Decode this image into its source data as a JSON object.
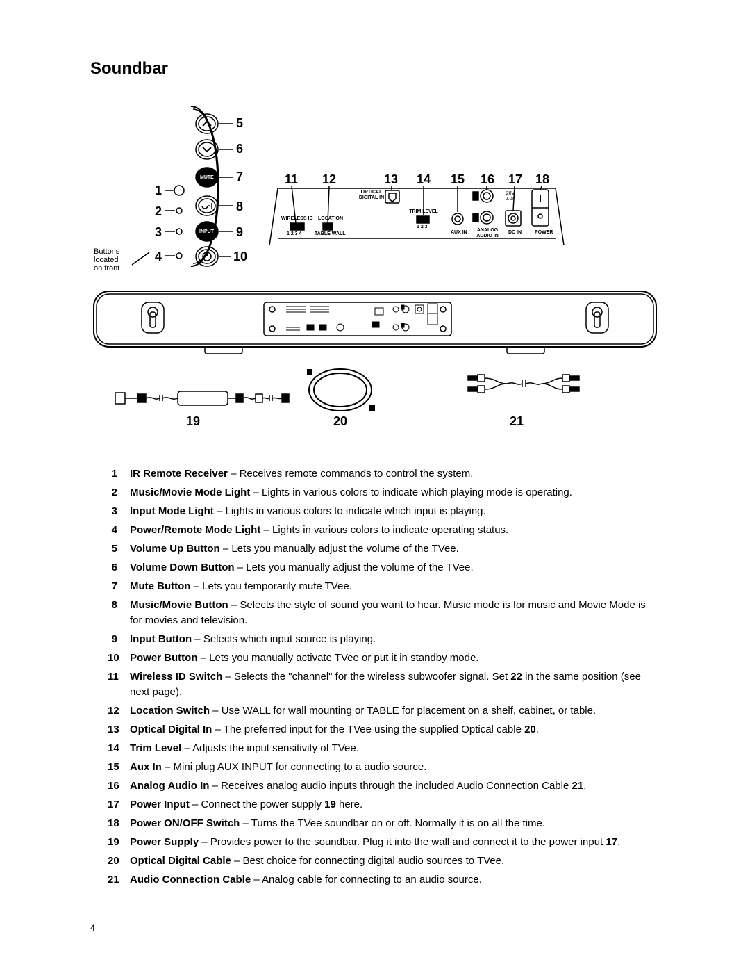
{
  "title": "Soundbar",
  "page_number": "4",
  "diagram": {
    "front_note": "Buttons\nlocated\non front",
    "left_nums": {
      "l1": "1",
      "l2": "2",
      "l3": "3",
      "l4": "4"
    },
    "right_nums": {
      "r5": "5",
      "r6": "6",
      "r7": "7",
      "r8": "8",
      "r9": "9",
      "r10": "10"
    },
    "top_nums": {
      "t11": "11",
      "t12": "12",
      "t13": "13",
      "t14": "14",
      "t15": "15",
      "t16": "16",
      "t17": "17",
      "t18": "18"
    },
    "bottom_nums": {
      "b19": "19",
      "b20": "20",
      "b21": "21"
    },
    "btn_mute": "MUTE",
    "btn_input": "INPUT",
    "lbl_optical": "OPTICAL\nDIGITAL IN",
    "lbl_wireless": "WIRELESS ID",
    "lbl_location": "LOCATION",
    "lbl_1234": "1 2 3 4",
    "lbl_tablewall": "TABLE  WALL",
    "lbl_trim": "TRIM LEVEL",
    "lbl_123": "1 2 3",
    "lbl_auxin": "AUX IN",
    "lbl_analog": "ANALOG\nAUDIO IN",
    "lbl_dcin": "DC IN",
    "lbl_power": "POWER",
    "lbl_20v": "20V\n2.0A"
  },
  "legend": [
    {
      "n": "1",
      "t": "IR Remote Receiver",
      "d": " – Receives remote commands to control the system."
    },
    {
      "n": "2",
      "t": "Music/Movie Mode Light",
      "d": " – Lights in various colors to indicate which playing mode is operating."
    },
    {
      "n": "3",
      "t": "Input Mode Light",
      "d": " – Lights in various colors to indicate which input is playing."
    },
    {
      "n": "4",
      "t": "Power/Remote Mode Light",
      "d": " – Lights in various colors to indicate operating status."
    },
    {
      "n": "5",
      "t": "Volume Up Button",
      "d": " – Lets you manually adjust the volume of the TVee."
    },
    {
      "n": "6",
      "t": "Volume Down Button",
      "d": " – Lets you manually adjust the volume of the TVee."
    },
    {
      "n": "7",
      "t": "Mute Button",
      "d": " – Lets you temporarily mute TVee."
    },
    {
      "n": "8",
      "t": "Music/Movie Button",
      "d": " – Selects the style of sound you want to hear. Music mode is for music and Movie Mode is for movies and television."
    },
    {
      "n": "9",
      "t": "Input Button",
      "d": " – Selects which input source is playing."
    },
    {
      "n": "10",
      "t": "Power Button",
      "d": " – Lets you manually activate TVee or put it in standby mode."
    },
    {
      "n": "11",
      "t": "Wireless ID Switch",
      "d": " – Selects the \"channel\" for the wireless subwoofer signal. Set <b>22</b> in the same position (see next page)."
    },
    {
      "n": "12",
      "t": "Location Switch",
      "d": " – Use WALL for wall mounting or TABLE for placement on a shelf, cabinet, or table."
    },
    {
      "n": "13",
      "t": "Optical Digital In",
      "d": " – The preferred input for the TVee using the supplied Optical cable <b>20</b>."
    },
    {
      "n": "14",
      "t": "Trim Level",
      "d": " – Adjusts the input sensitivity of TVee."
    },
    {
      "n": "15",
      "t": "Aux In",
      "d": " – Mini plug AUX INPUT for connecting to a audio source."
    },
    {
      "n": "16",
      "t": "Analog Audio In",
      "d": " – Receives analog audio inputs through the included Audio Connection Cable <b>21</b>."
    },
    {
      "n": "17",
      "t": "Power Input",
      "d": " – Connect the power supply <b>19</b> here."
    },
    {
      "n": "18",
      "t": "Power ON/OFF Switch",
      "d": " – Turns the TVee soundbar on or off. Normally it is on all the time."
    },
    {
      "n": "19",
      "t": "Power Supply",
      "d": " – Provides power to the soundbar. Plug it into the wall and connect it to the power input <b>17</b>."
    },
    {
      "n": "20",
      "t": "Optical Digital Cable",
      "d": " – Best choice for connecting digital audio sources to TVee."
    },
    {
      "n": "21",
      "t": "Audio Connection Cable",
      "d": " – Analog cable for connecting to an audio source."
    }
  ]
}
